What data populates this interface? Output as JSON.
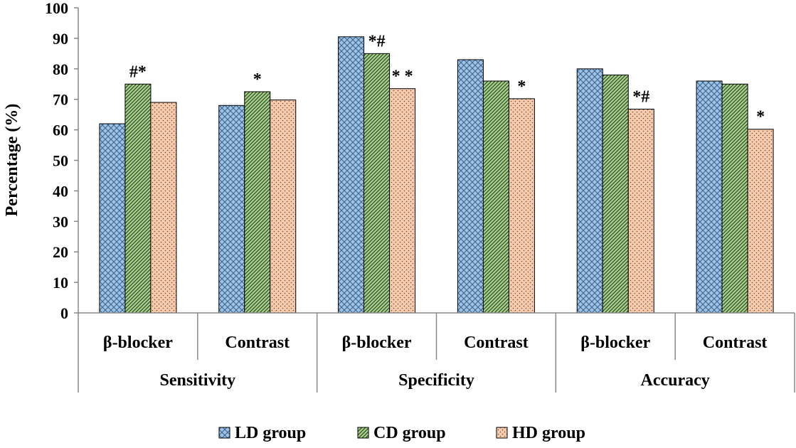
{
  "chart_data": {
    "type": "bar",
    "ylabel": "Percentage (%)",
    "ylim": [
      0,
      100
    ],
    "yticks": [
      0,
      10,
      20,
      30,
      40,
      50,
      60,
      70,
      80,
      90,
      100
    ],
    "groups": [
      {
        "label": "Sensitivity",
        "subcategories": [
          "β-blocker",
          "Contrast"
        ]
      },
      {
        "label": "Specificity",
        "subcategories": [
          "β-blocker",
          "Contrast"
        ]
      },
      {
        "label": "Accuracy",
        "subcategories": [
          "β-blocker",
          "Contrast"
        ]
      }
    ],
    "series": [
      {
        "name": "LD group",
        "color": "#9dc3e6",
        "pattern": "crosshatch",
        "values": [
          62,
          68,
          90.5,
          83,
          80,
          76
        ]
      },
      {
        "name": "CD group",
        "color": "#a9d18e",
        "pattern": "diagonal",
        "values": [
          75,
          72.5,
          85,
          76,
          78,
          75
        ]
      },
      {
        "name": "HD group",
        "color": "#f8cbad",
        "pattern": "dots",
        "values": [
          69,
          69.8,
          73.5,
          70.2,
          66.8,
          60.2
        ]
      }
    ],
    "annotations": [
      {
        "subcategory_index": 0,
        "series_index": 1,
        "text": "#*"
      },
      {
        "subcategory_index": 1,
        "series_index": 1,
        "text": "*"
      },
      {
        "subcategory_index": 2,
        "series_index": 1,
        "text": "*#"
      },
      {
        "subcategory_index": 2,
        "series_index": 2,
        "text": "* *"
      },
      {
        "subcategory_index": 3,
        "series_index": 2,
        "text": "*"
      },
      {
        "subcategory_index": 4,
        "series_index": 2,
        "text": "*#"
      },
      {
        "subcategory_index": 5,
        "series_index": 2,
        "text": "*"
      }
    ],
    "legend_position": "bottom",
    "grid": false
  }
}
